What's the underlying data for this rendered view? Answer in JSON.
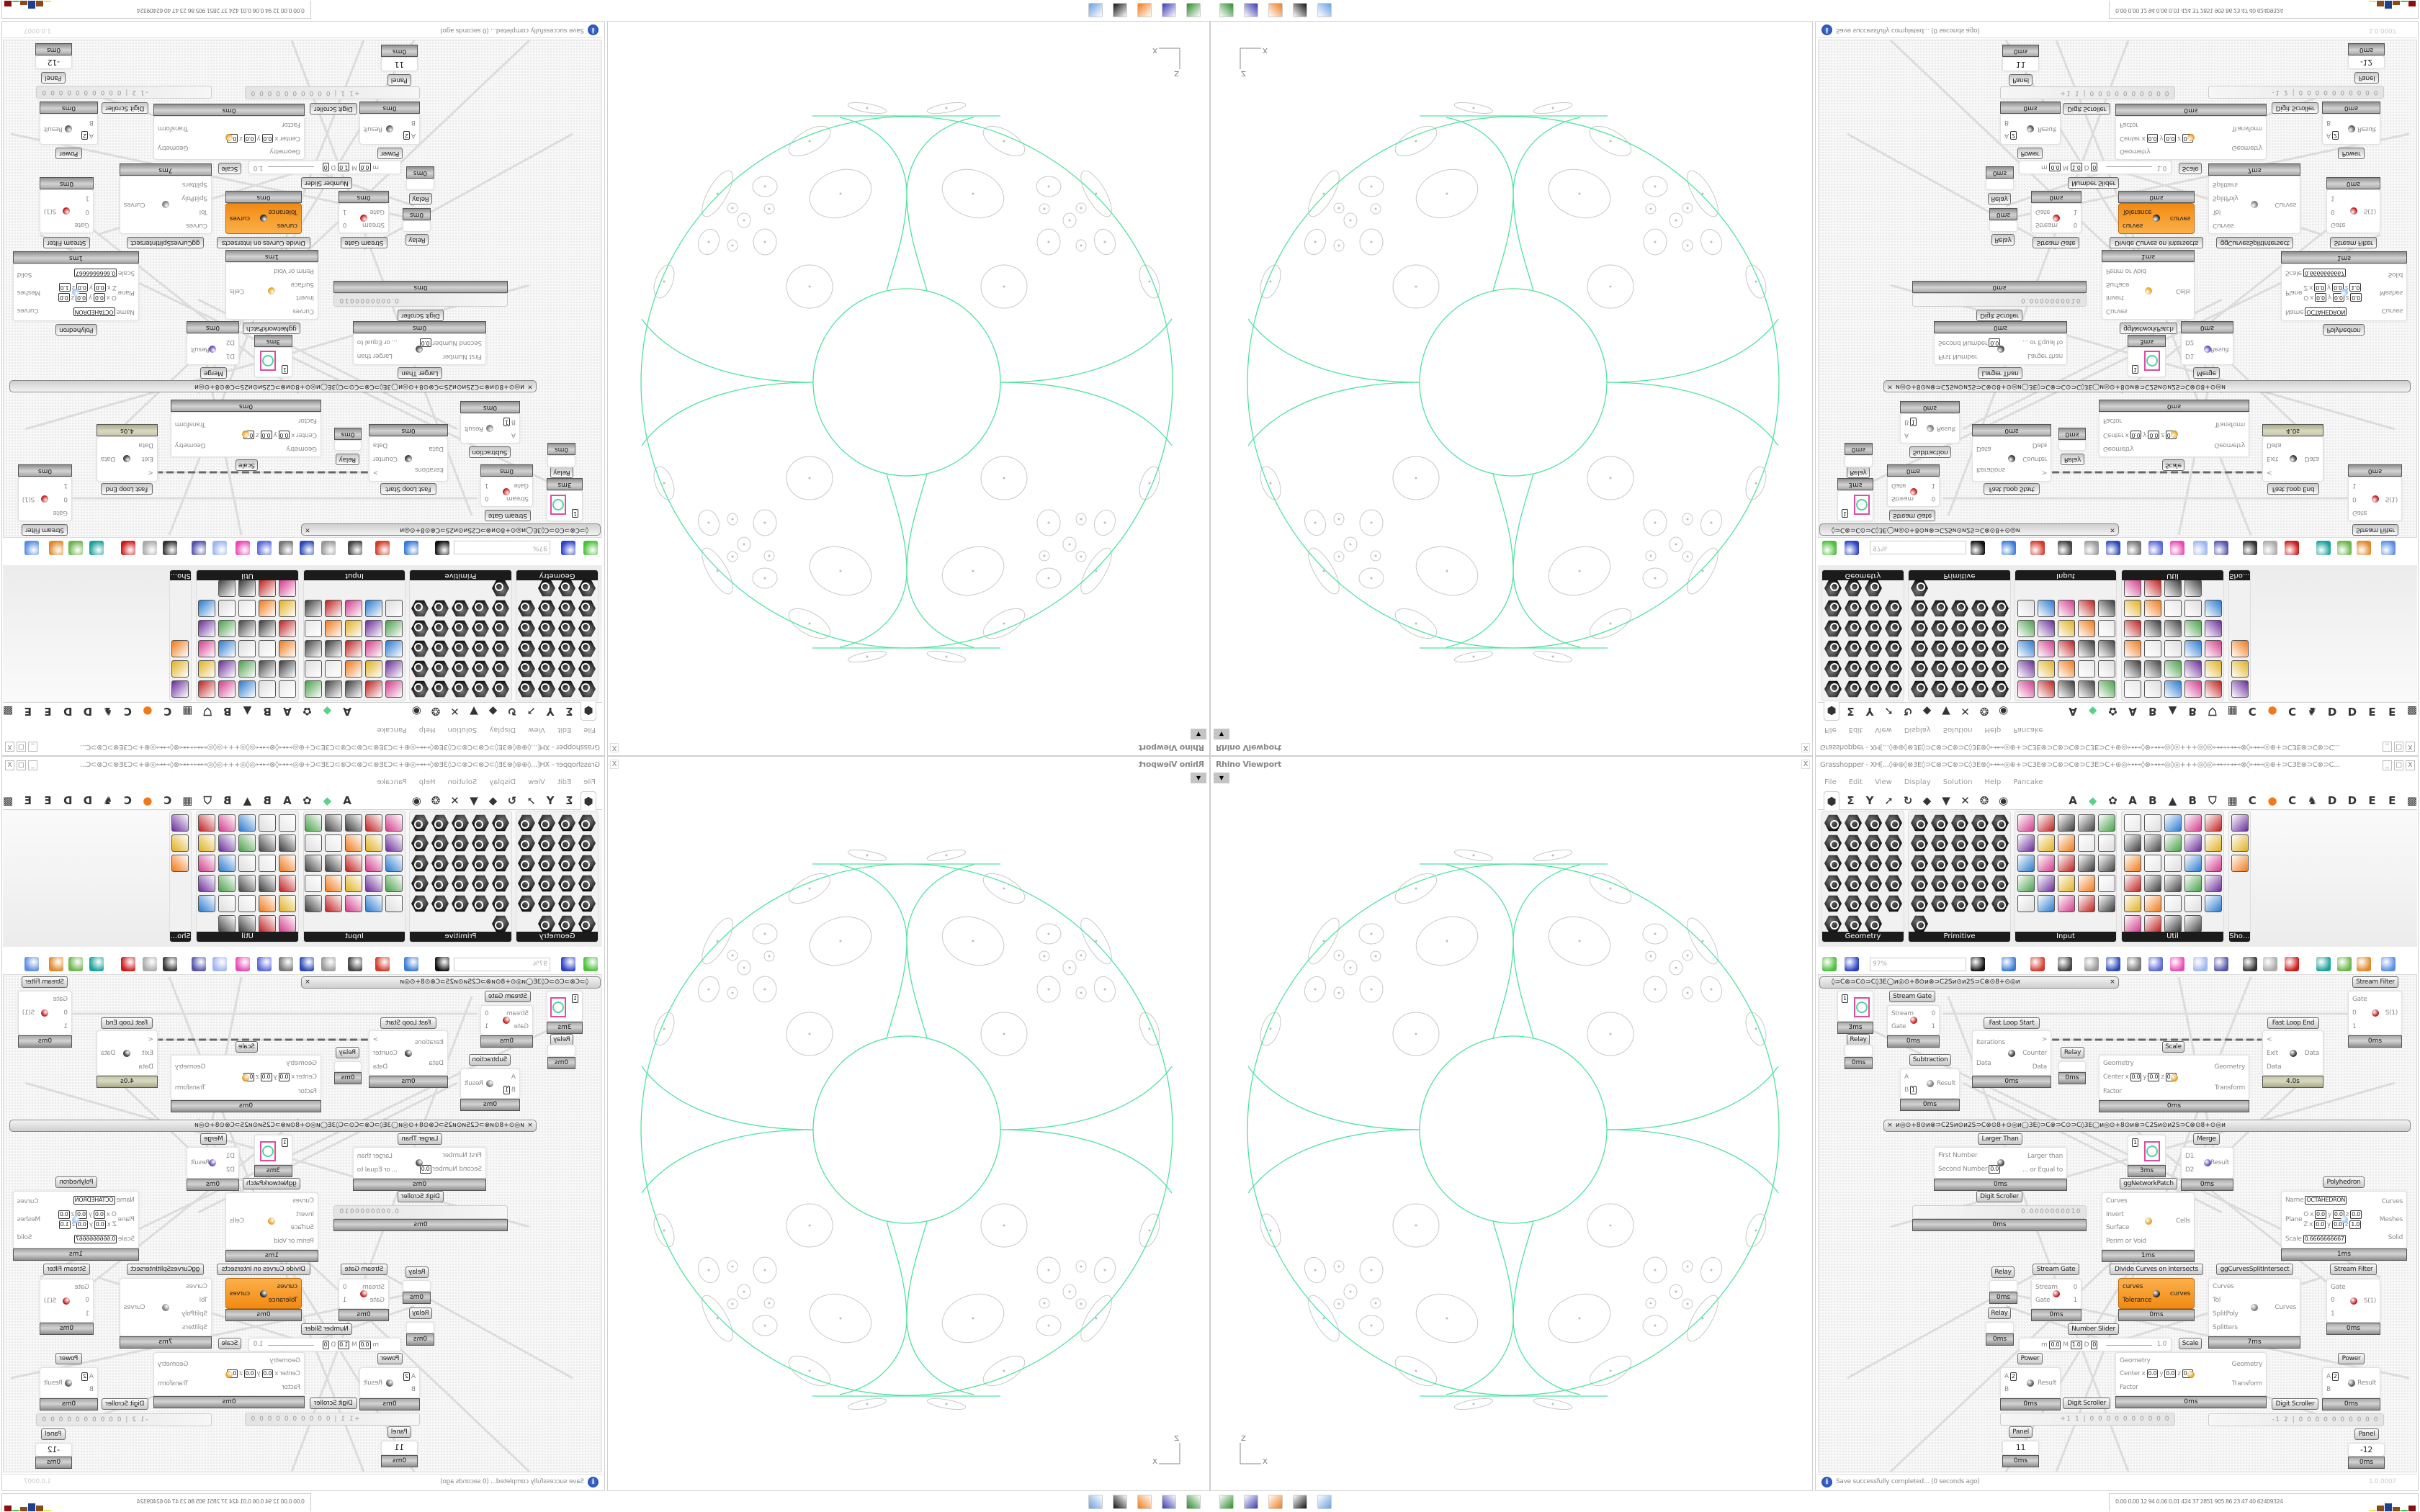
{
  "viewport": {
    "title": "Rhino Viewport",
    "close": "X",
    "dropdown": "▼",
    "axis": {
      "z": "Z",
      "x": "X"
    },
    "curve_color": "#4fe3a0"
  },
  "grasshopper": {
    "title": "Grasshopper - XH[...◊⊕⊕◊⊗3E◊⊃C⊗⊃C⊗⊃C◊3E⊗◊⊶⊷◎⊕+⊃C3E⊗⊃C⊗⊃C⊗⊃C3E⊃C+⊕◎⊶⊷◊⊗⊶⊷◎◊◎+++◎◊◎⊶⊷⊶⊷⊗◊⊶⊷◎⊕+⊃C3E⊗⊃C⊗⊃C...",
    "window_controls": [
      "_",
      "□",
      "X"
    ],
    "menu": [
      "File",
      "Edit",
      "View",
      "Display",
      "Solution",
      "Help",
      "Pancake"
    ],
    "tabs_left": [
      {
        "icon": "params",
        "glyph": "⬢"
      },
      {
        "icon": "maths",
        "glyph": "Σ"
      },
      {
        "icon": "sets",
        "glyph": "Y"
      },
      {
        "icon": "vector",
        "glyph": "➚"
      },
      {
        "icon": "curve",
        "glyph": "↻"
      },
      {
        "icon": "surface",
        "glyph": "◆"
      },
      {
        "icon": "mesh",
        "glyph": "▼"
      },
      {
        "icon": "intersect",
        "glyph": "✕"
      },
      {
        "icon": "transform",
        "glyph": "❂"
      },
      {
        "icon": "display",
        "glyph": "◉"
      }
    ],
    "tabs_right": [
      {
        "text": "A"
      },
      {
        "icon": "crystal",
        "glyph": "◆"
      },
      {
        "icon": "gear-puzzle",
        "glyph": "✿"
      },
      {
        "text": "A"
      },
      {
        "text": "B"
      },
      {
        "icon": "mountain",
        "glyph": "▲"
      },
      {
        "text": "B"
      },
      {
        "icon": "shield",
        "glyph": "⛉"
      },
      {
        "icon": "grid",
        "glyph": "▦"
      },
      {
        "text": "C"
      },
      {
        "icon": "orange-circle",
        "glyph": "●"
      },
      {
        "text": "C"
      },
      {
        "icon": "rooster",
        "glyph": "♞"
      },
      {
        "text": "D"
      },
      {
        "text": "D"
      },
      {
        "text": "E"
      },
      {
        "text": "E"
      },
      {
        "icon": "pattern",
        "glyph": "▩"
      }
    ],
    "ribbon": [
      {
        "label": "Geometry",
        "icons": [
          "box",
          "line",
          "plane",
          "spiral",
          "point-x",
          "surface",
          "brep",
          "field",
          "vector",
          "rectangle",
          "text-tag",
          "twisted-box",
          "circle",
          "cube",
          "arc",
          "group",
          "curve",
          "mesh-face",
          "mesh",
          "transform",
          "shape",
          "mesh-sphere",
          "geometry-pipe"
        ]
      },
      {
        "label": "Primitive",
        "icons": [
          "boolean",
          "fish",
          "data-matrix",
          "domain",
          "data-path",
          "polygon",
          "arrow-2d",
          "time",
          "domain-2",
          "shader",
          "path-mapper",
          "string",
          "hexagon",
          "file-path",
          "integer",
          "complex",
          "tree",
          "matrix",
          "number",
          "cull",
          "text",
          "face",
          "id",
          "sphere",
          "gradient-curve",
          "colour"
        ]
      },
      {
        "label": "Input",
        "icons": [
          "import-3dm",
          "button",
          "gradient-3d",
          "3dm",
          "object",
          "graph",
          "gumball",
          "t-shape",
          "xyz",
          "toggle",
          "colour-swatch",
          "colour-wheel",
          "img",
          "knob",
          "checker",
          "graph-mapper",
          "pdb",
          "import",
          "calendar",
          "slider-vr",
          "shp",
          "value-list",
          "clock",
          "spectrum",
          "id-tag"
        ]
      },
      {
        "label": "Util",
        "icons": [
          "cherries",
          "data-dam",
          "arrow-right",
          "cluster",
          "font",
          "play",
          "record",
          "fitness",
          "spiral-box",
          "disc",
          "axes",
          "pencil",
          "stopwatch",
          "seven",
          "flask",
          "tree-image",
          "trigger",
          "egg",
          "script",
          "function",
          "circle-blob",
          "timer",
          "premiere",
          "decimal",
          "palette",
          "abc",
          "arrow-fwd",
          "galapagos",
          "remove"
        ]
      },
      {
        "label": "Sho…",
        "icons": [
          "goggles",
          "goggles-2",
          "show-board"
        ]
      }
    ],
    "toolbar": {
      "zoom": "97%",
      "icons": [
        {
          "name": "new-document",
          "color": "#4bbf3a"
        },
        {
          "name": "save",
          "color": "#2a40c8"
        },
        {
          "name": "zoom-extents",
          "color": "#111111"
        },
        {
          "name": "preview-eye",
          "color": "#3a7bd5"
        },
        {
          "name": "sketch",
          "color": "#d33a2a"
        },
        {
          "name": "bake",
          "color": "#444444"
        },
        {
          "name": "email",
          "color": "#999999"
        },
        {
          "name": "gha",
          "color": "#2a48b8"
        },
        {
          "name": "canvas-image",
          "color": "#777777"
        },
        {
          "name": "search",
          "color": "#5c6ad8"
        },
        {
          "name": "package",
          "color": "#e84ab5"
        },
        {
          "name": "bulb",
          "color": "#9fb6f0"
        },
        {
          "name": "twisted-wires",
          "color": "#5555aa"
        },
        {
          "name": "drop",
          "color": "#333333"
        },
        {
          "name": "chain",
          "color": "#aaaaaa"
        },
        {
          "name": "red-gem",
          "color": "#cc1a1a"
        },
        {
          "name": "teal-shape",
          "color": "#1aa19b"
        },
        {
          "name": "green-shape",
          "color": "#6bb54a"
        },
        {
          "name": "half-sphere",
          "color": "#e0882a"
        },
        {
          "name": "blue-sphere",
          "color": "#5a8de0"
        }
      ]
    },
    "canvas": {
      "groups": [
        {
          "text": "◊⊃C⊗⊃C⊙⊃C◊3E◯ᴎ◎⊙+8⊙ᴎ⊗⊃C2Sᴎ⊙ᴎ2S⊃C⊗⊙8+⊙◎ᴎ",
          "close": "×"
        },
        {
          "text": "ᴎ◎⊙+8⊙ᴎ⊗⊃C2Sᴎ⊙ᴎ2S⊃C⊗⊙8+⊙◎ᴎ◯3E◊⊃C⊗⊃C⊙⊃C◊3E◯ᴎ◎⊙+8⊙ᴎ⊗⊃C2Sᴎ⊙ᴎ2S⊃C⊗⊙8+⊙◎ᴎ",
          "close": "×"
        }
      ],
      "components": [
        {
          "id": "toggle1",
          "value": "1",
          "timing": "3ms"
        },
        {
          "id": "sg1",
          "label": "Stream Gate",
          "inputs": [
            "Stream",
            "Gate"
          ],
          "outputs": [
            "0",
            "1"
          ],
          "icon": "stream-gate",
          "timing": "0ms"
        },
        {
          "id": "relay1",
          "label": "Relay",
          "timing": "0ms"
        },
        {
          "id": "fls",
          "label": "Fast Loop Start",
          "inputs": [
            "Iterations",
            "Data"
          ],
          "outputs": [
            ">",
            "Counter",
            "Data"
          ],
          "icon": "loop-start",
          "timing": "0ms"
        },
        {
          "id": "fle",
          "label": "Fast Loop End",
          "inputs": [
            "<",
            "Exit",
            "Data"
          ],
          "outputs": [
            "Data"
          ],
          "icon": "loop-end",
          "timing": "4.0s"
        },
        {
          "id": "sf1",
          "label": "Stream Filter",
          "inputs": [
            "Gate",
            "0",
            "1"
          ],
          "outputs": [
            "S(1)"
          ],
          "icon": "stream-filter",
          "timing": "0ms"
        },
        {
          "id": "sub",
          "label": "Subtraction",
          "inputs": [
            "A",
            {
              "name": "B",
              "values": [
                "1"
              ]
            }
          ],
          "outputs": [
            "Result"
          ],
          "icon": "minus",
          "timing": "0ms"
        },
        {
          "id": "relay2",
          "label": "Relay",
          "timing": "0ms"
        },
        {
          "id": "scale1",
          "label": "Scale",
          "inputs": [
            "Geometry",
            {
              "name": "Center",
              "axes": [
                "x",
                "y",
                "z"
              ],
              "values": [
                "0.0",
                "0.0",
                "0.0"
              ]
            },
            "Factor"
          ],
          "outputs": [
            "Geometry",
            "Transform"
          ],
          "icon": "scale",
          "timing": "0ms"
        },
        {
          "id": "lt",
          "label": "Larger Than",
          "inputs": [
            "First Number",
            {
              "name": "Second Number",
              "values": [
                "0.0"
              ]
            }
          ],
          "outputs": [
            "Larger than",
            "... or Equal to"
          ],
          "icon": "larger-than",
          "timing": "0ms"
        },
        {
          "id": "toggle2",
          "value": "1",
          "timing": "3ms"
        },
        {
          "id": "merge",
          "label": "Merge",
          "inputs": [
            "D1",
            "D2"
          ],
          "outputs": [
            "Result"
          ],
          "icon": "merge",
          "timing": "0ms"
        },
        {
          "id": "ds1",
          "label": "Digit Scroller",
          "value": "0.0000000010",
          "timing": "0ms"
        },
        {
          "id": "cells",
          "label": "ggNetworkPatch",
          "inputs": [
            "Curves",
            "Invert",
            "Surface",
            "Perim or Void"
          ],
          "outputs": [
            "Cells"
          ],
          "icon": "network-patch",
          "timing": "1ms"
        },
        {
          "id": "poly",
          "label": "Polyhedron",
          "inputs": [
            {
              "name": "Name",
              "values": [
                "OCTAHEDRON"
              ]
            },
            {
              "name": "Plane",
              "rows": [
                {
                  "prefix": "O",
                  "axes": [
                    "x",
                    "y",
                    "z"
                  ],
                  "values": [
                    "0.0",
                    "0.0",
                    "0.0"
                  ]
                },
                {
                  "prefix": "Z",
                  "axes": [
                    "x",
                    "y",
                    "z"
                  ],
                  "values": [
                    "0.0",
                    "0.0",
                    "1.0"
                  ]
                }
              ]
            },
            {
              "name": "Scale",
              "values": [
                "0.6666666667"
              ]
            }
          ],
          "outputs": [
            "Curves",
            "Meshes",
            "Solid"
          ],
          "icon": "polyhedron",
          "timing": "1ms"
        },
        {
          "id": "relay3",
          "label": "Relay",
          "timing": "0ms"
        },
        {
          "id": "relay4",
          "label": "Relay",
          "timing": "0ms"
        },
        {
          "id": "sg2",
          "label": "Stream Gate",
          "inputs": [
            "Stream",
            "Gate"
          ],
          "outputs": [
            "0",
            "1"
          ],
          "icon": "stream-gate",
          "timing": "0ms"
        },
        {
          "id": "dc",
          "label": "Divide Curves on Intersects",
          "inputs": [
            "curves",
            "Tolerance"
          ],
          "outputs": [
            "curves"
          ],
          "icon": "divide-curves",
          "timing": "0ms"
        },
        {
          "id": "ggs",
          "label": "ggCurvesSplitIntersect",
          "inputs": [
            "Curves",
            "Tol",
            "SplitPoly",
            "Splitters"
          ],
          "outputs": [
            "Curves"
          ],
          "icon": "split-intersect",
          "timing": "7ms"
        },
        {
          "id": "sf2",
          "label": "Stream Filter",
          "inputs": [
            "Gate",
            "0",
            "1"
          ],
          "outputs": [
            "S(1)"
          ],
          "icon": "stream-filter",
          "timing": "0ms"
        },
        {
          "id": "ns",
          "label": "Number Slider",
          "min": "0.0",
          "max": "1.0",
          "decimals": "0",
          "value": "1.0"
        },
        {
          "id": "scale2",
          "label": "Scale",
          "inputs": [
            "Geometry",
            {
              "name": "Center",
              "axes": [
                "x",
                "y",
                "z"
              ],
              "values": [
                "0.0",
                "0.0",
                "0.0"
              ]
            },
            "Factor"
          ],
          "outputs": [
            "Geometry",
            "Transform"
          ],
          "icon": "scale",
          "timing": "0ms"
        },
        {
          "id": "pow1",
          "label": "Power",
          "inputs": [
            {
              "name": "A",
              "values": [
                "2"
              ]
            },
            "B"
          ],
          "outputs": [
            "Result"
          ],
          "icon": "power",
          "timing": "0ms"
        },
        {
          "id": "pow2",
          "label": "Power",
          "inputs": [
            {
              "name": "A",
              "values": [
                "2"
              ]
            },
            "B"
          ],
          "outputs": [
            "Result"
          ],
          "icon": "power",
          "timing": "0ms"
        },
        {
          "id": "ds2",
          "label": "Digit Scroller",
          "value": "+1 1 | 0 0 0 0 0 0 0 0 0 0"
        },
        {
          "id": "ds3",
          "label": "Digit Scroller",
          "value": "-1 2 | 0 0 0 0 0 0 0 0 0 0"
        },
        {
          "id": "p1",
          "label": "Panel",
          "value": "11",
          "timing": "0ms"
        },
        {
          "id": "p2",
          "label": "Panel",
          "value": "-12",
          "timing": "0ms"
        }
      ]
    },
    "status": {
      "message": "Save successfully completed... (0 seconds ago)",
      "version": "1.0.0007"
    }
  },
  "taskbar": {
    "apps": [
      "terminal",
      "save-64",
      "firefox",
      "rhino",
      "calculator"
    ],
    "stats": "0.00 0.00  12  94  0.06 0.01  424  37  2851 905  86  23  47  40  62409324",
    "stat_bar_colors": [
      "#e8e85a",
      "#8b4a1a",
      "#1f3f8f",
      "#8b4a1a",
      "#4ac44a",
      "#8b1010"
    ]
  }
}
